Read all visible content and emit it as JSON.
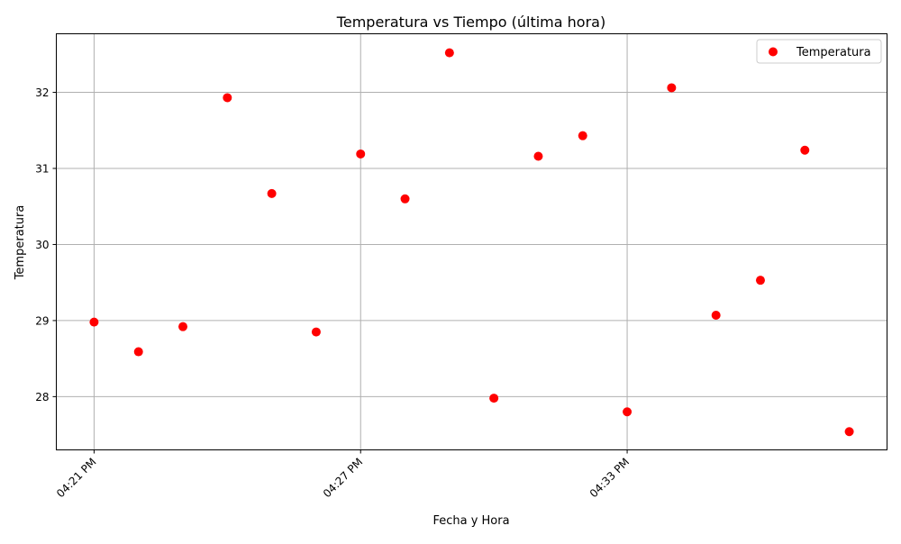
{
  "chart_data": {
    "type": "scatter",
    "title": "Temperatura vs Tiempo (última hora)",
    "xlabel": "Fecha y Hora",
    "ylabel": "Temperatura",
    "legend": {
      "position": "top-right",
      "entries": [
        "Temperatura"
      ]
    },
    "grid": true,
    "x_ticks": [
      "04:21 PM",
      "04:27 PM",
      "04:33 PM"
    ],
    "y_ticks": [
      "28",
      "29",
      "30",
      "31",
      "32"
    ],
    "xlim": [
      "04:20:09 PM",
      "04:38:51 PM"
    ],
    "ylim": [
      27.3,
      32.77
    ],
    "series": [
      {
        "name": "Temperatura",
        "color": "#ff0000",
        "x": [
          "04:21 PM",
          "04:22 PM",
          "04:23 PM",
          "04:24 PM",
          "04:25 PM",
          "04:26 PM",
          "04:27 PM",
          "04:28 PM",
          "04:29 PM",
          "04:30 PM",
          "04:31 PM",
          "04:32 PM",
          "04:33 PM",
          "04:34 PM",
          "04:35 PM",
          "04:36 PM",
          "04:37 PM",
          "04:38 PM"
        ],
        "y": [
          28.98,
          28.59,
          28.92,
          31.93,
          30.67,
          28.85,
          31.19,
          30.6,
          32.52,
          27.98,
          31.16,
          31.43,
          27.8,
          32.06,
          29.07,
          29.53,
          31.24,
          27.54
        ]
      }
    ]
  }
}
